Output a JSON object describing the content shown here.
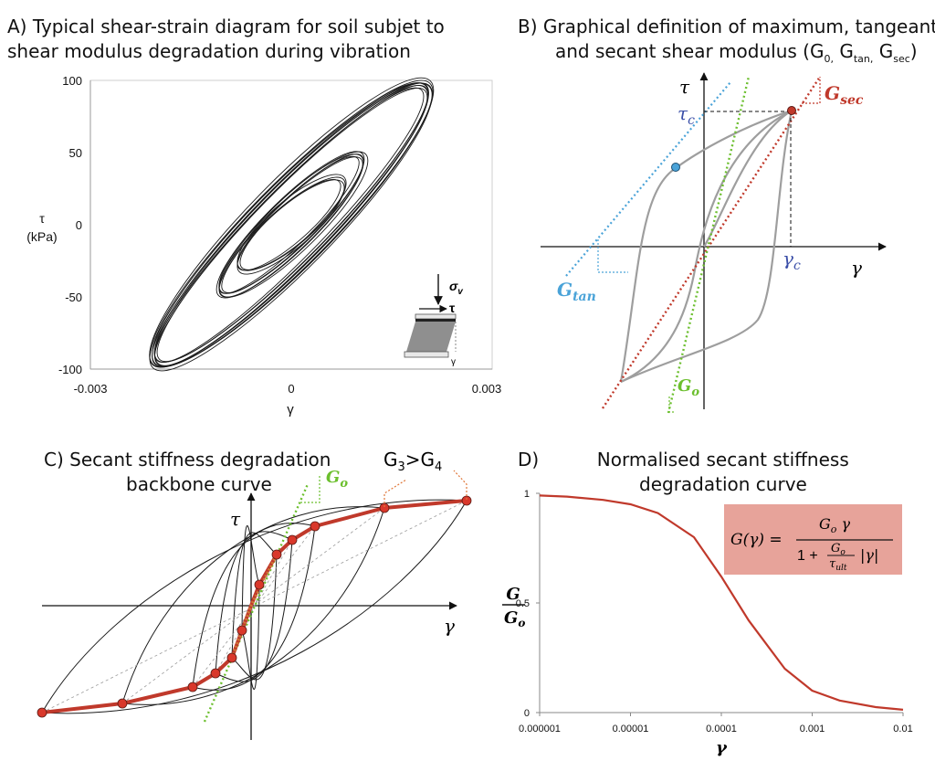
{
  "panel_a": {
    "title_line1": "A) Typical shear-strain diagram for soil subjet to",
    "title_line2": "shear modulus degradation during vibration",
    "y_ticks": [
      "100",
      "50",
      "0",
      "-50",
      "-100"
    ],
    "x_ticks": [
      "-0.003",
      "0",
      "0.003"
    ],
    "ylabel_line1": "τ",
    "ylabel_line2": "(kPa)",
    "xlabel": "γ",
    "inset_sigma": "σ",
    "inset_sigma_sub": "v",
    "inset_tau": "τ",
    "inset_gamma": "γ"
  },
  "panel_b": {
    "title_line1": "B) Graphical definition of maximum, tangeant",
    "title_line2": "and secant shear modulus (G",
    "sub_0": "0,",
    "sep": " G",
    "sub_tan": "tan,",
    "sub_sec": "sec",
    "close": ")",
    "tau_axis": "τ",
    "gamma_axis": "γ",
    "tau_c": "τ",
    "tau_c_sub": "c",
    "gamma_c": "γ",
    "gamma_c_sub": "c",
    "g_sec": "G",
    "g_sec_sub": "sec",
    "g_tan": "G",
    "g_tan_sub": "tan",
    "g_o": "G",
    "g_o_sub": "o"
  },
  "panel_c": {
    "title_line1": "C) Secant stiffness degradation",
    "title_line2": "backbone curve",
    "g3_g4_a": "G",
    "g3_g4_b": "3",
    "g3_g4_c": ">G",
    "g3_g4_d": "4",
    "g_o": "G",
    "g_o_sub": "o",
    "tau_axis": "τ",
    "gamma_axis": "γ"
  },
  "panel_d": {
    "title_line1": "D)          Normalised secant stiffness",
    "title_line2": "degradation curve",
    "y_ticks": [
      "1",
      "0.5",
      "0"
    ],
    "x_ticks": [
      "0.000001",
      "0.00001",
      "0.0001",
      "0.001",
      "0.01"
    ],
    "ylabel_num": "G",
    "ylabel_den": "G",
    "ylabel_den_sub": "o",
    "xlabel": "γ",
    "formula_lhs": "G(γ) =",
    "formula_num": "G",
    "formula_num_sub": "o",
    "formula_num_tail": " γ",
    "formula_den_one": "1 +",
    "formula_frac_num": "G",
    "formula_frac_num_sub": "o",
    "formula_frac_den": "τ",
    "formula_frac_den_sub": "ult",
    "formula_abs": "|γ|"
  },
  "colors": {
    "backbone": "#c0392b",
    "marker": "#d9382b",
    "g_sec": "#c0392b",
    "g_tan": "#4aa3d8",
    "g_o": "#6cbf2e",
    "tau_c_label": "#3b4fa8",
    "formula_bg": "#e7a39a"
  },
  "chart_data": [
    {
      "type": "line",
      "panel": "D",
      "title": "Normalised secant stiffness degradation curve",
      "xscale": "log",
      "xlim": [
        1e-06,
        0.01
      ],
      "ylim": [
        0,
        1
      ],
      "x": [
        1e-06,
        2e-06,
        5e-06,
        1e-05,
        2e-05,
        5e-05,
        0.0001,
        0.0002,
        0.0005,
        0.001,
        0.002,
        0.005,
        0.01
      ],
      "series": [
        {
          "values": [
            0.99,
            0.985,
            0.97,
            0.95,
            0.91,
            0.8,
            0.62,
            0.42,
            0.2,
            0.1,
            0.055,
            0.025,
            0.013
          ]
        }
      ]
    }
  ]
}
